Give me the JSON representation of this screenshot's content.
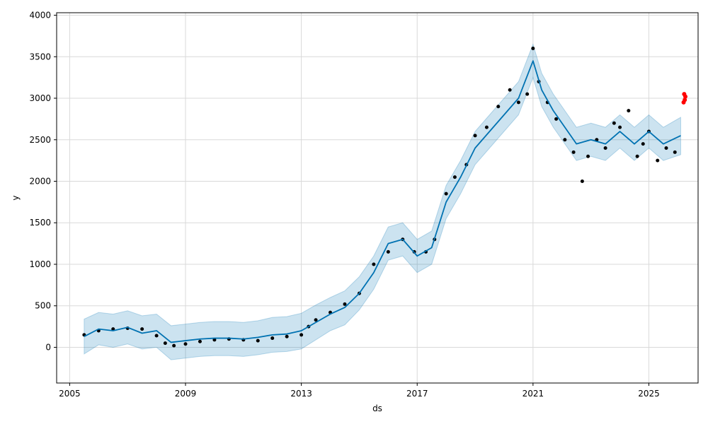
{
  "chart_data": {
    "type": "line",
    "title": "",
    "xlabel": "ds",
    "ylabel": "y",
    "xlim": [
      2004.55,
      2026.7
    ],
    "ylim": [
      -430,
      4030
    ],
    "x_ticks": [
      2005,
      2009,
      2013,
      2017,
      2021,
      2025
    ],
    "x_tick_labels": [
      "2005",
      "2009",
      "2013",
      "2017",
      "2021",
      "2025"
    ],
    "y_ticks": [
      0,
      500,
      1000,
      1500,
      2000,
      2500,
      3000,
      3500,
      4000
    ],
    "y_tick_labels": [
      "0",
      "500",
      "1000",
      "1500",
      "2000",
      "2500",
      "3000",
      "3500",
      "4000"
    ],
    "grid": true,
    "colors": {
      "observed": "#000000",
      "forecast": "#0072B2",
      "uncertainty": "#0072B2",
      "holdout": "#ff0000"
    },
    "series": [
      {
        "kind": "observed",
        "x": [
          2005.5,
          2006.0,
          2006.5,
          2007.0,
          2007.5,
          2008.0,
          2008.3,
          2008.6,
          2009.0,
          2009.5,
          2010.0,
          2010.5,
          2011.0,
          2011.5,
          2012.0,
          2012.5,
          2013.0,
          2013.25,
          2013.5,
          2014.0,
          2014.5,
          2015.0,
          2015.5,
          2016.0,
          2016.5,
          2016.9,
          2017.3,
          2017.6,
          2018.0,
          2018.3,
          2018.7,
          2019.0,
          2019.4,
          2019.8,
          2020.2,
          2020.5,
          2020.8,
          2021.0,
          2021.2,
          2021.5,
          2021.8,
          2022.1,
          2022.4,
          2022.7,
          2022.9,
          2023.2,
          2023.5,
          2023.8,
          2024.0,
          2024.3,
          2024.6,
          2024.8,
          2025.0,
          2025.3,
          2025.6,
          2025.9
        ],
        "y": [
          150,
          200,
          220,
          230,
          220,
          140,
          50,
          20,
          40,
          70,
          90,
          100,
          90,
          80,
          110,
          130,
          150,
          250,
          330,
          420,
          520,
          650,
          1000,
          1150,
          1300,
          1150,
          1150,
          1300,
          1850,
          2050,
          2200,
          2550,
          2650,
          2900,
          3100,
          2950,
          3050,
          3600,
          3200,
          2950,
          2750,
          2500,
          2350,
          2000,
          2300,
          2500,
          2400,
          2700,
          2650,
          2850,
          2300,
          2450,
          2600,
          2250,
          2400,
          2350
        ]
      },
      {
        "kind": "forecast",
        "x": [
          2005.5,
          2006.0,
          2006.5,
          2007.0,
          2007.5,
          2008.0,
          2008.5,
          2009.0,
          2009.5,
          2010.0,
          2010.5,
          2011.0,
          2011.5,
          2012.0,
          2012.5,
          2013.0,
          2013.5,
          2014.0,
          2014.5,
          2015.0,
          2015.5,
          2016.0,
          2016.5,
          2017.0,
          2017.5,
          2018.0,
          2018.5,
          2019.0,
          2019.5,
          2020.0,
          2020.5,
          2021.0,
          2021.3,
          2021.7,
          2022.0,
          2022.5,
          2023.0,
          2023.5,
          2024.0,
          2024.5,
          2025.0,
          2025.5,
          2026.1
        ],
        "y": [
          130,
          220,
          200,
          240,
          170,
          200,
          60,
          80,
          100,
          110,
          110,
          100,
          120,
          150,
          160,
          200,
          300,
          400,
          480,
          650,
          900,
          1250,
          1300,
          1100,
          1200,
          1750,
          2050,
          2400,
          2600,
          2800,
          3000,
          3450,
          3100,
          2850,
          2700,
          2450,
          2500,
          2450,
          2600,
          2450,
          2600,
          2450,
          2550
        ]
      },
      {
        "kind": "uncertainty",
        "x": [
          2005.5,
          2006.0,
          2006.5,
          2007.0,
          2007.5,
          2008.0,
          2008.5,
          2009.0,
          2009.5,
          2010.0,
          2010.5,
          2011.0,
          2011.5,
          2012.0,
          2012.5,
          2013.0,
          2013.5,
          2014.0,
          2014.5,
          2015.0,
          2015.5,
          2016.0,
          2016.5,
          2017.0,
          2017.5,
          2018.0,
          2018.5,
          2019.0,
          2019.5,
          2020.0,
          2020.5,
          2021.0,
          2021.3,
          2021.7,
          2022.0,
          2022.5,
          2023.0,
          2023.5,
          2024.0,
          2024.5,
          2025.0,
          2025.5,
          2026.1
        ],
        "lower": [
          -80,
          30,
          0,
          40,
          -20,
          0,
          -150,
          -130,
          -110,
          -100,
          -100,
          -110,
          -90,
          -60,
          -50,
          -20,
          90,
          200,
          270,
          450,
          700,
          1050,
          1100,
          900,
          1000,
          1550,
          1850,
          2200,
          2400,
          2600,
          2800,
          3250,
          2900,
          2650,
          2500,
          2250,
          2300,
          2250,
          2400,
          2250,
          2400,
          2250,
          2320
        ],
        "upper": [
          340,
          420,
          400,
          440,
          380,
          400,
          260,
          280,
          300,
          310,
          310,
          300,
          320,
          360,
          370,
          410,
          510,
          600,
          680,
          850,
          1100,
          1450,
          1500,
          1300,
          1400,
          1950,
          2250,
          2600,
          2800,
          3000,
          3200,
          3650,
          3300,
          3050,
          2900,
          2650,
          2700,
          2650,
          2800,
          2650,
          2800,
          2650,
          2770
        ]
      },
      {
        "kind": "holdout",
        "x": [
          2026.2,
          2026.22,
          2026.24,
          2026.26
        ],
        "y": [
          2950,
          3050,
          2980,
          3020
        ]
      }
    ]
  }
}
